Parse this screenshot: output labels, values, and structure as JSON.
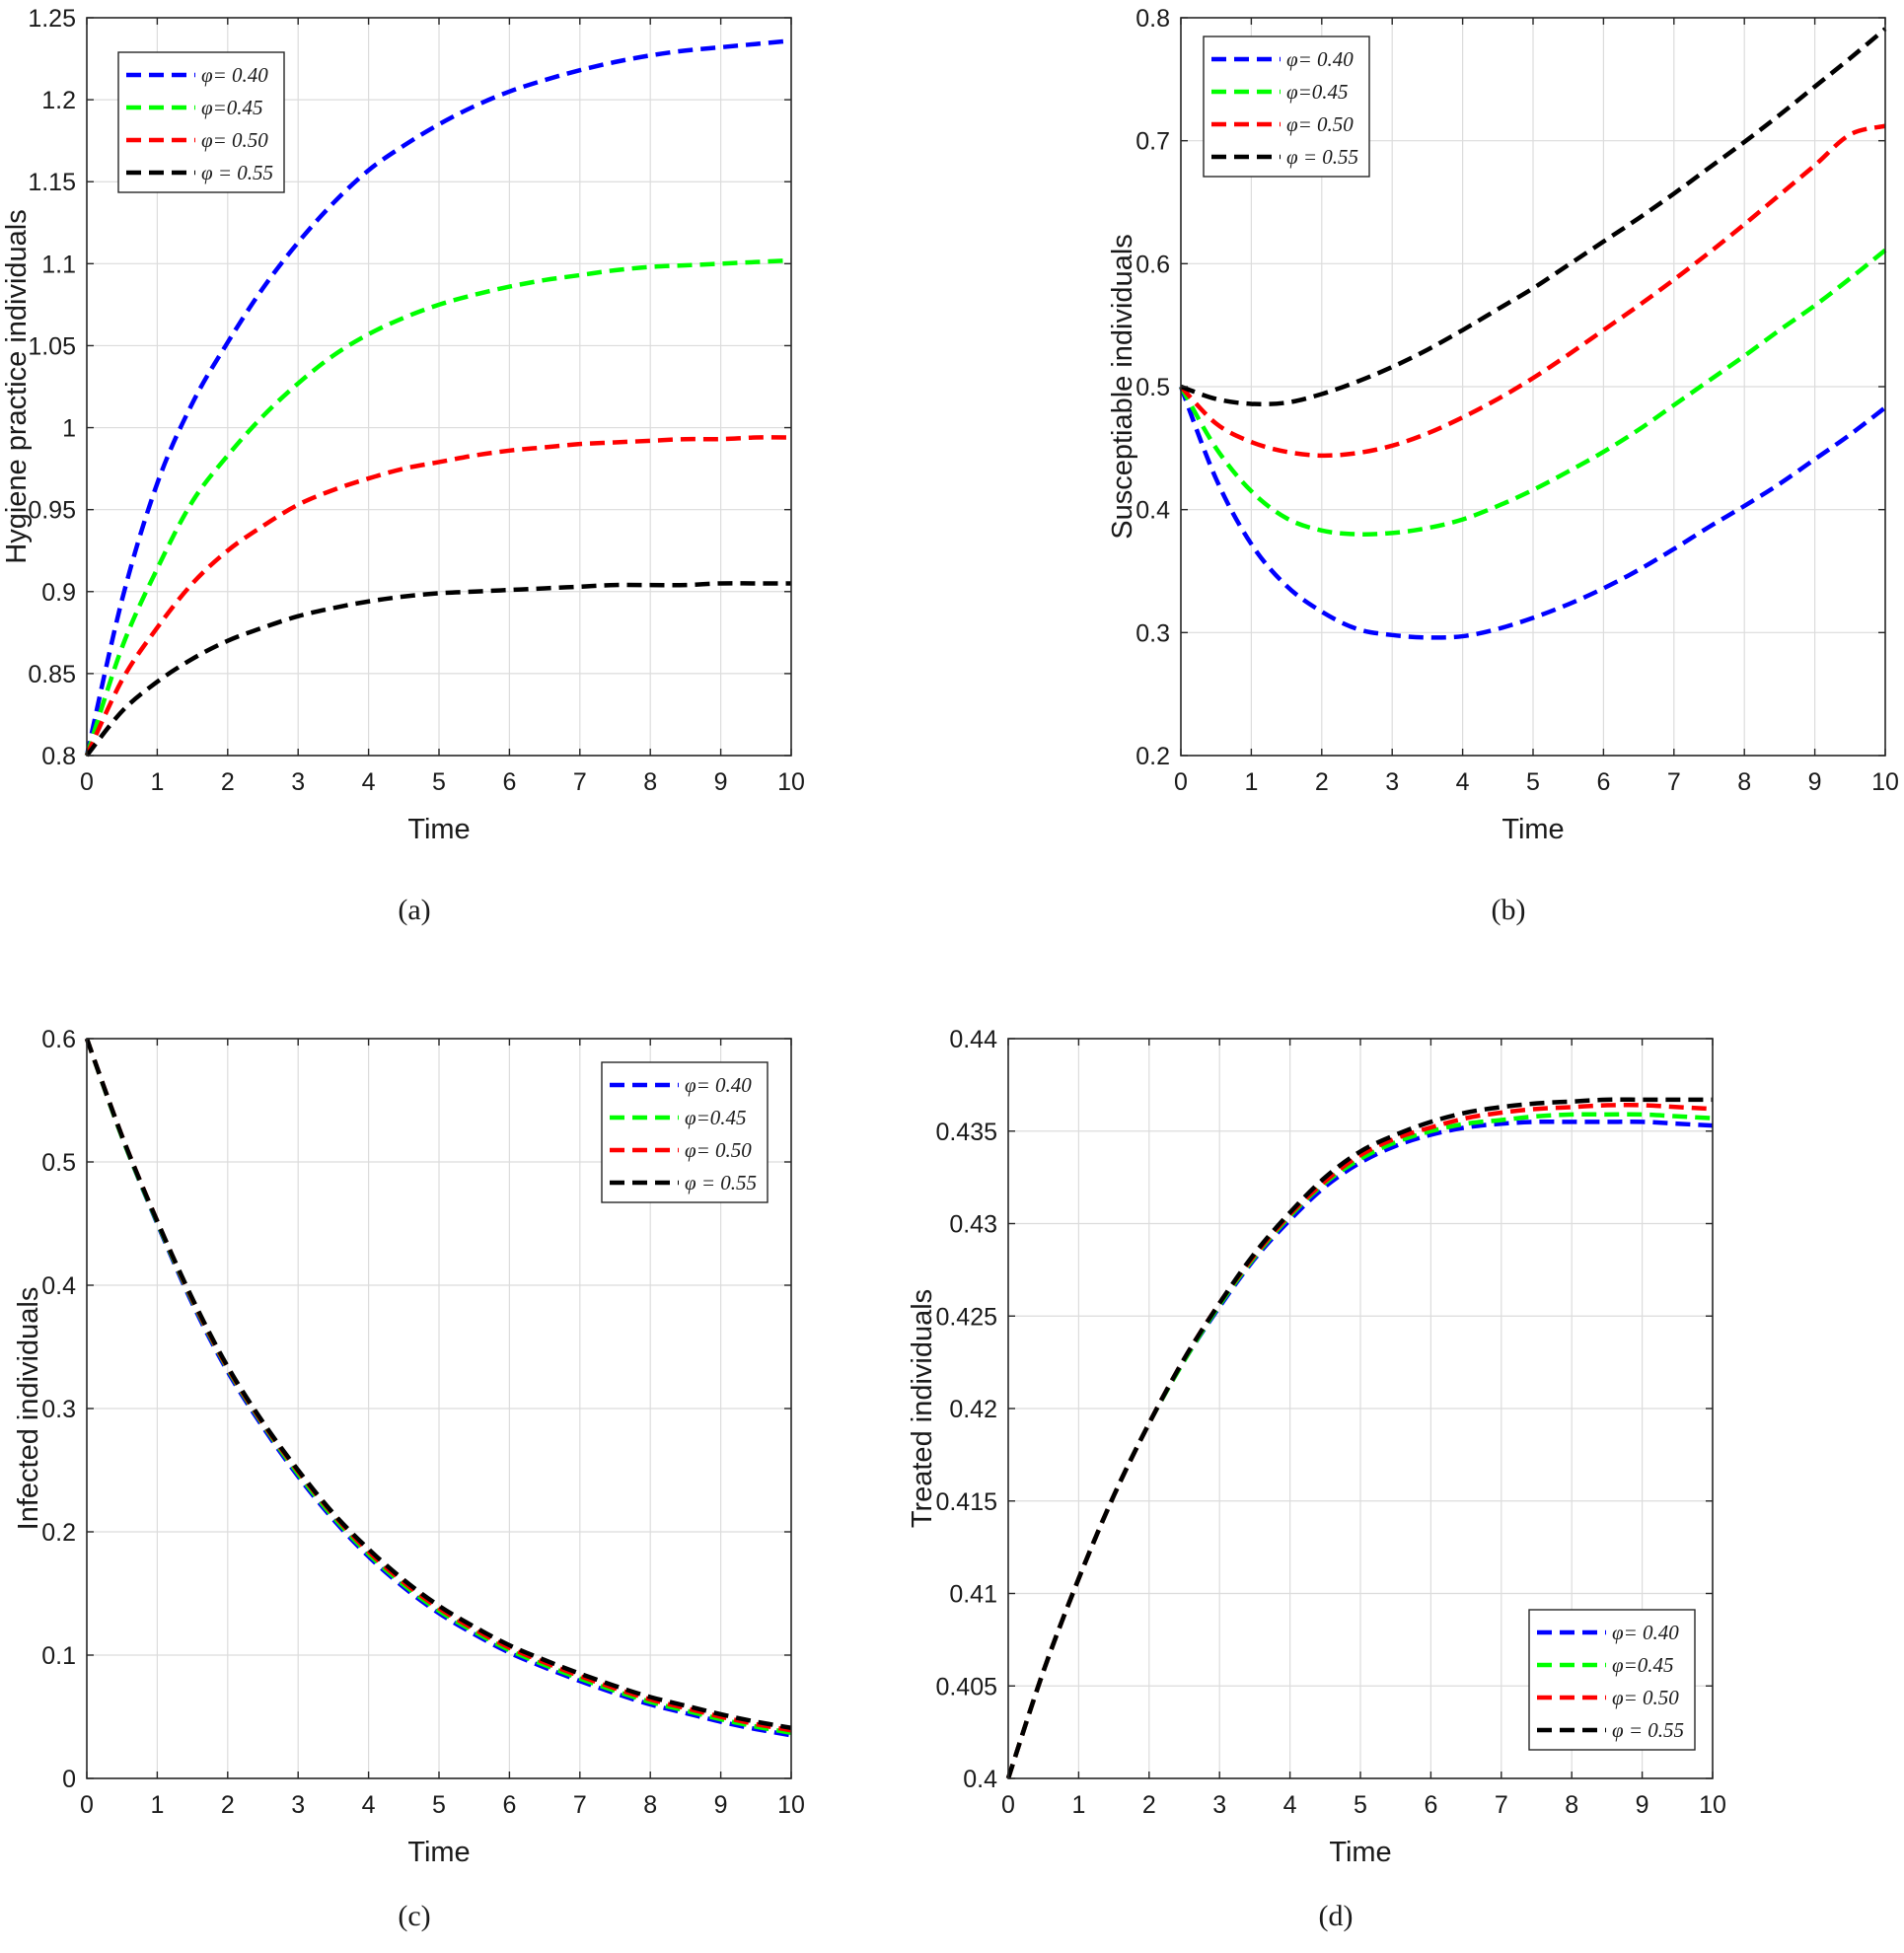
{
  "figure": {
    "panels": [
      "a",
      "b",
      "c",
      "d"
    ]
  },
  "chart_data": [
    {
      "id": "a",
      "type": "line",
      "caption": "(a)",
      "title": "",
      "xlabel": "Time",
      "ylabel": "Hygiene practice individuals",
      "xlim": [
        0,
        10
      ],
      "ylim": [
        0.8,
        1.25
      ],
      "xticks": [
        0,
        1,
        2,
        3,
        4,
        5,
        6,
        7,
        8,
        9,
        10
      ],
      "yticks": [
        0.8,
        0.85,
        0.9,
        0.95,
        1,
        1.05,
        1.1,
        1.15,
        1.2,
        1.25
      ],
      "ytick_labels": [
        "0.8",
        "0.85",
        "0.9",
        "0.95",
        "1",
        "1.05",
        "1.1",
        "1.15",
        "1.2",
        "1.25"
      ],
      "grid": true,
      "legend_position": "top-left",
      "x": [
        0,
        0.5,
        1,
        1.5,
        2,
        2.5,
        3,
        3.5,
        4,
        4.5,
        5,
        5.5,
        6,
        6.5,
        7,
        7.5,
        8,
        8.5,
        9,
        9.5,
        10
      ],
      "series": [
        {
          "name": "φ= 0.40",
          "color": "#0000ff",
          "values": [
            0.8,
            0.895,
            0.966,
            1.015,
            1.052,
            1.085,
            1.113,
            1.137,
            1.157,
            1.172,
            1.185,
            1.196,
            1.205,
            1.212,
            1.218,
            1.223,
            1.227,
            1.23,
            1.232,
            1.234,
            1.236
          ]
        },
        {
          "name": "φ=0.45",
          "color": "#00ff00",
          "values": [
            0.8,
            0.866,
            0.914,
            0.955,
            0.983,
            1.007,
            1.027,
            1.044,
            1.057,
            1.067,
            1.075,
            1.081,
            1.086,
            1.09,
            1.093,
            1.096,
            1.098,
            1.099,
            1.1,
            1.101,
            1.102
          ]
        },
        {
          "name": "φ= 0.50",
          "color": "#ff0000",
          "values": [
            0.8,
            0.846,
            0.878,
            0.905,
            0.925,
            0.94,
            0.953,
            0.962,
            0.969,
            0.975,
            0.979,
            0.983,
            0.986,
            0.988,
            0.99,
            0.991,
            0.992,
            0.993,
            0.993,
            0.994,
            0.994
          ]
        },
        {
          "name": "φ = 0.55",
          "color": "#000000",
          "values": [
            0.8,
            0.827,
            0.845,
            0.859,
            0.87,
            0.878,
            0.885,
            0.89,
            0.894,
            0.897,
            0.899,
            0.9,
            0.901,
            0.902,
            0.903,
            0.904,
            0.904,
            0.904,
            0.905,
            0.905,
            0.905
          ]
        }
      ]
    },
    {
      "id": "b",
      "type": "line",
      "caption": "(b)",
      "title": "",
      "xlabel": "Time",
      "ylabel": "Susceptiable individuals",
      "xlim": [
        0,
        10
      ],
      "ylim": [
        0.2,
        0.8
      ],
      "xticks": [
        0,
        1,
        2,
        3,
        4,
        5,
        6,
        7,
        8,
        9,
        10
      ],
      "yticks": [
        0.2,
        0.3,
        0.4,
        0.5,
        0.6,
        0.7,
        0.8
      ],
      "ytick_labels": [
        "0.2",
        "0.3",
        "0.4",
        "0.5",
        "0.6",
        "0.7",
        "0.8"
      ],
      "grid": true,
      "legend_position": "top-left",
      "x": [
        0,
        0.5,
        1,
        1.5,
        2,
        2.5,
        3,
        3.5,
        4,
        4.5,
        5,
        5.5,
        6,
        6.5,
        7,
        7.5,
        8,
        8.5,
        9,
        9.5,
        10
      ],
      "series": [
        {
          "name": "φ= 0.40",
          "color": "#0000ff",
          "values": [
            0.5,
            0.425,
            0.372,
            0.338,
            0.317,
            0.303,
            0.298,
            0.296,
            0.297,
            0.303,
            0.312,
            0.323,
            0.336,
            0.351,
            0.368,
            0.386,
            0.403,
            0.421,
            0.441,
            0.461,
            0.483
          ]
        },
        {
          "name": "φ=0.45",
          "color": "#00ff00",
          "values": [
            0.5,
            0.45,
            0.415,
            0.393,
            0.383,
            0.38,
            0.381,
            0.385,
            0.392,
            0.403,
            0.416,
            0.431,
            0.447,
            0.465,
            0.485,
            0.505,
            0.525,
            0.546,
            0.566,
            0.588,
            0.611
          ]
        },
        {
          "name": "φ= 0.50",
          "color": "#ff0000",
          "values": [
            0.5,
            0.47,
            0.455,
            0.447,
            0.444,
            0.446,
            0.452,
            0.462,
            0.475,
            0.49,
            0.507,
            0.526,
            0.546,
            0.566,
            0.587,
            0.609,
            0.632,
            0.656,
            0.68,
            0.705,
            0.712
          ]
        },
        {
          "name": "φ = 0.55",
          "color": "#000000",
          "values": [
            0.5,
            0.49,
            0.486,
            0.487,
            0.494,
            0.504,
            0.516,
            0.53,
            0.546,
            0.563,
            0.58,
            0.599,
            0.618,
            0.637,
            0.657,
            0.678,
            0.699,
            0.721,
            0.744,
            0.767,
            0.791
          ]
        }
      ]
    },
    {
      "id": "c",
      "type": "line",
      "caption": "(c)",
      "title": "",
      "xlabel": "Time",
      "ylabel": "Infected individuals",
      "xlim": [
        0,
        10
      ],
      "ylim": [
        0,
        0.6
      ],
      "xticks": [
        0,
        1,
        2,
        3,
        4,
        5,
        6,
        7,
        8,
        9,
        10
      ],
      "yticks": [
        0,
        0.1,
        0.2,
        0.3,
        0.4,
        0.5,
        0.6
      ],
      "ytick_labels": [
        "0",
        "0.1",
        "0.2",
        "0.3",
        "0.4",
        "0.5",
        "0.6"
      ],
      "grid": true,
      "legend_position": "top-right",
      "x": [
        0,
        0.5,
        1,
        1.5,
        2,
        2.5,
        3,
        3.5,
        4,
        4.5,
        5,
        5.5,
        6,
        6.5,
        7,
        7.5,
        8,
        8.5,
        9,
        9.5,
        10
      ],
      "series": [
        {
          "name": "φ= 0.40",
          "color": "#0000ff",
          "values": [
            0.6,
            0.52,
            0.45,
            0.385,
            0.33,
            0.285,
            0.245,
            0.21,
            0.18,
            0.155,
            0.134,
            0.117,
            0.102,
            0.09,
            0.079,
            0.069,
            0.06,
            0.053,
            0.046,
            0.04,
            0.035
          ]
        },
        {
          "name": "φ=0.45",
          "color": "#00ff00",
          "values": [
            0.6,
            0.52,
            0.451,
            0.387,
            0.332,
            0.287,
            0.247,
            0.212,
            0.182,
            0.157,
            0.136,
            0.119,
            0.104,
            0.092,
            0.081,
            0.071,
            0.062,
            0.055,
            0.048,
            0.042,
            0.037
          ]
        },
        {
          "name": "φ= 0.50",
          "color": "#ff0000",
          "values": [
            0.6,
            0.521,
            0.452,
            0.388,
            0.333,
            0.288,
            0.249,
            0.214,
            0.184,
            0.159,
            0.138,
            0.121,
            0.106,
            0.094,
            0.083,
            0.073,
            0.064,
            0.057,
            0.05,
            0.044,
            0.039
          ]
        },
        {
          "name": "φ = 0.55",
          "color": "#000000",
          "values": [
            0.6,
            0.521,
            0.452,
            0.389,
            0.334,
            0.289,
            0.25,
            0.215,
            0.186,
            0.161,
            0.14,
            0.123,
            0.108,
            0.096,
            0.085,
            0.075,
            0.066,
            0.059,
            0.052,
            0.046,
            0.041
          ]
        }
      ]
    },
    {
      "id": "d",
      "type": "line",
      "caption": "(d)",
      "title": "",
      "xlabel": "Time",
      "ylabel": "Treated individuals",
      "xlim": [
        0,
        10
      ],
      "ylim": [
        0.4,
        0.44
      ],
      "xticks": [
        0,
        1,
        2,
        3,
        4,
        5,
        6,
        7,
        8,
        9,
        10
      ],
      "yticks": [
        0.4,
        0.405,
        0.41,
        0.415,
        0.42,
        0.425,
        0.43,
        0.435,
        0.44
      ],
      "ytick_labels": [
        "0.4",
        "0.405",
        "0.41",
        "0.415",
        "0.42",
        "0.425",
        "0.43",
        "0.435",
        "0.44"
      ],
      "grid": true,
      "legend_position": "bottom-right",
      "x": [
        0,
        0.5,
        1,
        1.5,
        2,
        2.5,
        3,
        3.5,
        4,
        4.5,
        5,
        5.5,
        6,
        6.5,
        7,
        7.5,
        8,
        8.5,
        9,
        9.5,
        10
      ],
      "series": [
        {
          "name": "φ= 0.40",
          "color": "#0000ff",
          "values": [
            0.4,
            0.4058,
            0.4108,
            0.4153,
            0.4192,
            0.4226,
            0.4255,
            0.4281,
            0.4302,
            0.432,
            0.4333,
            0.4342,
            0.4348,
            0.4352,
            0.4354,
            0.4355,
            0.4355,
            0.4355,
            0.4355,
            0.4354,
            0.4353
          ]
        },
        {
          "name": "φ=0.45",
          "color": "#00ff00",
          "values": [
            0.4,
            0.4058,
            0.4108,
            0.4153,
            0.4192,
            0.4226,
            0.4256,
            0.4282,
            0.4304,
            0.4322,
            0.4335,
            0.4344,
            0.435,
            0.4354,
            0.4356,
            0.4358,
            0.4359,
            0.4359,
            0.4359,
            0.4358,
            0.4357
          ]
        },
        {
          "name": "φ= 0.50",
          "color": "#ff0000",
          "values": [
            0.4,
            0.4058,
            0.4108,
            0.4153,
            0.4192,
            0.4227,
            0.4257,
            0.4283,
            0.4305,
            0.4323,
            0.4337,
            0.4346,
            0.4352,
            0.4357,
            0.436,
            0.4362,
            0.4363,
            0.4364,
            0.4364,
            0.4363,
            0.4362
          ]
        },
        {
          "name": "φ = 0.55",
          "color": "#000000",
          "values": [
            0.4,
            0.4058,
            0.4108,
            0.4153,
            0.4192,
            0.4227,
            0.4257,
            0.4284,
            0.4306,
            0.4325,
            0.4339,
            0.4348,
            0.4355,
            0.436,
            0.4363,
            0.4365,
            0.4366,
            0.4367,
            0.4367,
            0.4367,
            0.4367
          ]
        }
      ]
    }
  ]
}
